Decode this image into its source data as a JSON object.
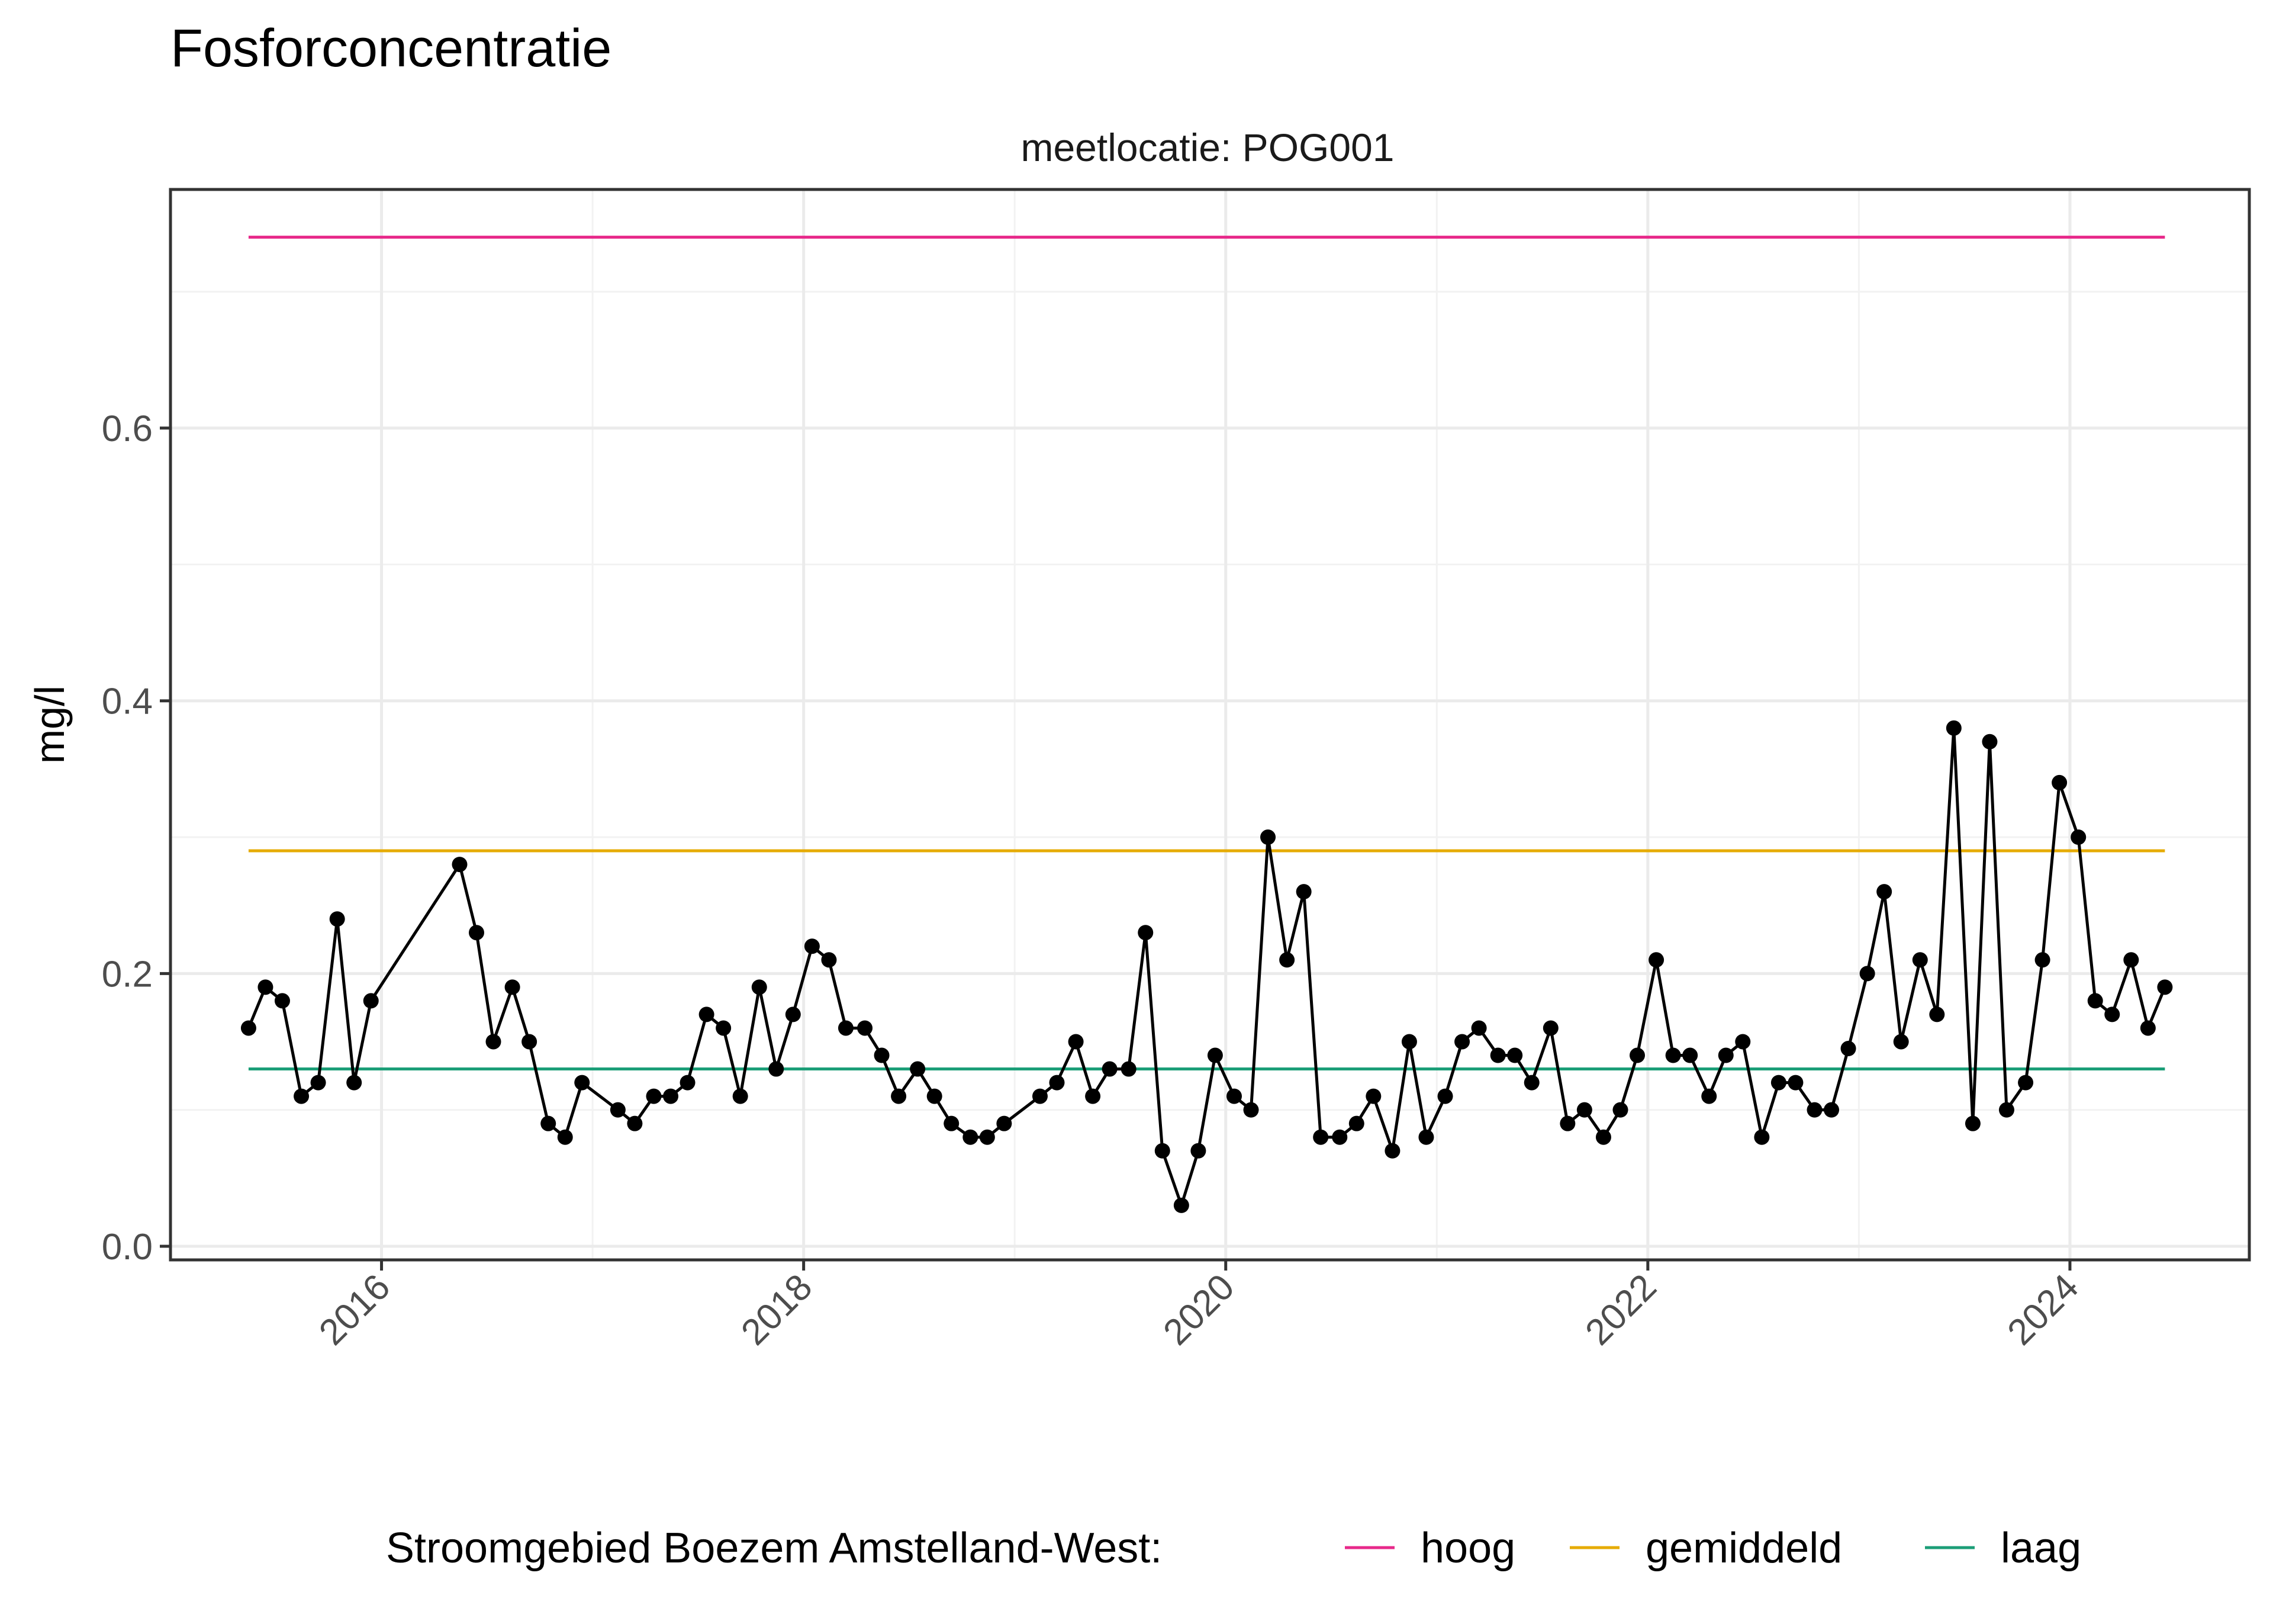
{
  "chart_data": {
    "type": "line",
    "title": "Fosforconcentratie",
    "facet_label": "meetlocatie: POG001",
    "ylabel": "mg/l",
    "xlabel": "",
    "ylim": [
      -0.01,
      0.775
    ],
    "xlim": [
      2015.0,
      2024.85
    ],
    "y_ticks": [
      0.0,
      0.2,
      0.4,
      0.6
    ],
    "y_tick_labels": [
      "0.0",
      "0.2",
      "0.4",
      "0.6"
    ],
    "x_ticks": [
      2016,
      2018,
      2020,
      2022,
      2024
    ],
    "x_tick_labels": [
      "2016",
      "2018",
      "2020",
      "2022",
      "2024"
    ],
    "grid": true,
    "legend": {
      "placement": "bottom",
      "title": "Stroomgebied Boezem Amstelland-West:",
      "entries": [
        {
          "name": "hoog",
          "color": "#E7298A"
        },
        {
          "name": "gemiddeld",
          "color": "#E6AB02"
        },
        {
          "name": "laag",
          "color": "#1B9E77"
        }
      ]
    },
    "reference_lines": [
      {
        "name": "hoog",
        "value": 0.74,
        "color": "#E7298A"
      },
      {
        "name": "gemiddeld",
        "value": 0.29,
        "color": "#E6AB02"
      },
      {
        "name": "laag",
        "value": 0.13,
        "color": "#1B9E77"
      }
    ],
    "series": [
      {
        "color": "#000000",
        "x": [
          2015.37,
          2015.45,
          2015.53,
          2015.62,
          2015.7,
          2015.79,
          2015.87,
          2015.95,
          2016.37,
          2016.45,
          2016.53,
          2016.62,
          2016.7,
          2016.79,
          2016.87,
          2016.95,
          2017.12,
          2017.2,
          2017.29,
          2017.37,
          2017.45,
          2017.54,
          2017.62,
          2017.7,
          2017.79,
          2017.87,
          2017.95,
          2018.04,
          2018.12,
          2018.2,
          2018.29,
          2018.37,
          2018.45,
          2018.54,
          2018.62,
          2018.7,
          2018.79,
          2018.87,
          2018.95,
          2019.12,
          2019.2,
          2019.29,
          2019.37,
          2019.45,
          2019.54,
          2019.62,
          2019.7,
          2019.79,
          2019.87,
          2019.95,
          2020.04,
          2020.12,
          2020.2,
          2020.29,
          2020.37,
          2020.45,
          2020.54,
          2020.62,
          2020.7,
          2020.79,
          2020.87,
          2020.95,
          2021.04,
          2021.12,
          2021.2,
          2021.29,
          2021.37,
          2021.45,
          2021.54,
          2021.62,
          2021.7,
          2021.79,
          2021.87,
          2021.95,
          2022.04,
          2022.12,
          2022.2,
          2022.29,
          2022.37,
          2022.45,
          2022.54,
          2022.62,
          2022.7,
          2022.79,
          2022.87,
          2022.95,
          2023.04,
          2023.12,
          2023.2,
          2023.29,
          2023.37,
          2023.45,
          2023.54,
          2023.62,
          2023.7,
          2023.79,
          2023.87,
          2023.95,
          2024.04,
          2024.12,
          2024.2,
          2024.29,
          2024.37,
          2024.45
        ],
        "y": [
          0.16,
          0.19,
          0.18,
          0.11,
          0.12,
          0.24,
          0.12,
          0.18,
          0.28,
          0.23,
          0.15,
          0.19,
          0.15,
          0.09,
          0.08,
          0.12,
          0.1,
          0.09,
          0.11,
          0.11,
          0.12,
          0.17,
          0.16,
          0.11,
          0.19,
          0.13,
          0.17,
          0.22,
          0.21,
          0.16,
          0.16,
          0.14,
          0.11,
          0.13,
          0.11,
          0.09,
          0.08,
          0.08,
          0.09,
          0.11,
          0.12,
          0.15,
          0.11,
          0.13,
          0.13,
          0.23,
          0.07,
          0.03,
          0.07,
          0.14,
          0.11,
          0.1,
          0.3,
          0.21,
          0.26,
          0.08,
          0.08,
          0.09,
          0.11,
          0.07,
          0.15,
          0.08,
          0.11,
          0.15,
          0.16,
          0.14,
          0.14,
          0.12,
          0.16,
          0.09,
          0.1,
          0.08,
          0.1,
          0.14,
          0.21,
          0.14,
          0.14,
          0.11,
          0.14,
          0.15,
          0.08,
          0.12,
          0.12,
          0.1,
          0.1,
          0.145,
          0.2,
          0.26,
          0.15,
          0.21,
          0.17,
          0.38,
          0.09,
          0.37,
          0.1,
          0.12,
          0.21,
          0.34,
          0.3,
          0.18,
          0.17,
          0.21,
          0.16,
          0.19
        ]
      }
    ]
  }
}
